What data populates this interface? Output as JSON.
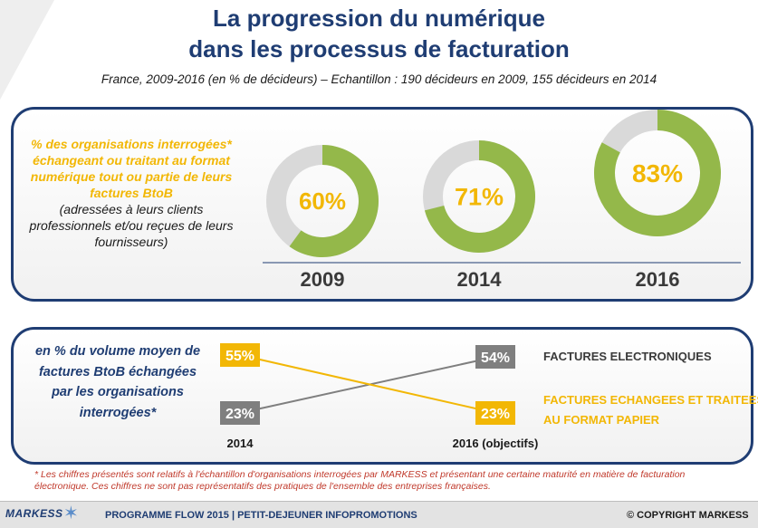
{
  "header": {
    "title_line1": "La progression du numérique",
    "title_line2": "dans les processus de facturation",
    "subtitle": "France, 2009-2016 (en % de décideurs) – Echantillon : 190 décideurs en 2009, 155 décideurs en 2014"
  },
  "panel1": {
    "desc_main": "% des organisations interrogées* échangeant ou traitant au format numérique tout ou partie de leurs factures BtoB",
    "desc_sub": "(adressées à leurs clients professionnels et/ou reçues de leurs fournisseurs)"
  },
  "panel2": {
    "desc": "en % du volume moyen de factures BtoB échangées par les organisations interrogées*"
  },
  "chart_data": [
    {
      "type": "pie",
      "categories": [
        "2009",
        "2014",
        "2016"
      ],
      "values": [
        60,
        71,
        83
      ],
      "value_labels": [
        "60%",
        "71%",
        "83%"
      ],
      "colors": {
        "filled": "#94b84a",
        "remaining": "#d9d9d9",
        "label": "#f2b705"
      }
    },
    {
      "type": "line",
      "x": [
        "2014",
        "2016 (objectifs)"
      ],
      "series": [
        {
          "name": "FACTURES ELECTRONIQUES",
          "values": [
            23,
            54
          ],
          "labels": [
            "23%",
            "54%"
          ],
          "color": "#7f7f7f"
        },
        {
          "name": "FACTURES ECHANGEES ET TRAITEES AU FORMAT PAPIER",
          "values": [
            55,
            23
          ],
          "labels": [
            "55%",
            "23%"
          ],
          "color": "#f2b705"
        }
      ]
    }
  ],
  "footnote": "* Les chiffres présentés sont relatifs à l'échantillon d'organisations interrogées par MARKESS et présentant une certaine maturité en matière de facturation électronique. Ces chiffres ne sont pas représentatifs des pratiques de l'ensemble des entreprises françaises.",
  "footer": {
    "brand": "MARKESS",
    "program": "PROGRAMME FLOW 2015 | PETIT-DEJEUNER INFOPROMOTIONS",
    "copyright": "© COPYRIGHT MARKESS"
  }
}
